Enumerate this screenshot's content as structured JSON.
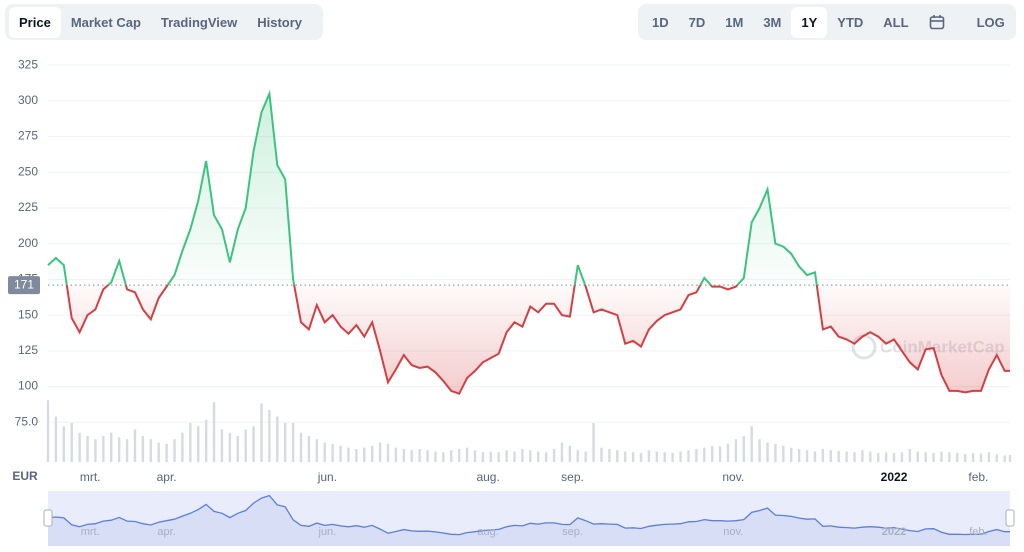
{
  "tabs": [
    "Price",
    "Market Cap",
    "TradingView",
    "History"
  ],
  "selected_tab": 0,
  "ranges": [
    "1D",
    "7D",
    "1M",
    "3M",
    "1Y",
    "YTD",
    "ALL"
  ],
  "selected_range": 4,
  "scale_toggle": "LOG",
  "chart_data": {
    "type": "line",
    "currency": "EUR",
    "watermark": "CoinMarketCap",
    "x": [
      0,
      3,
      6,
      9,
      12,
      15,
      18,
      21,
      24,
      27,
      30,
      33,
      36,
      39,
      42,
      45,
      48,
      51,
      54,
      57,
      60,
      63,
      66,
      69,
      72,
      75,
      78,
      81,
      84,
      87,
      90,
      93,
      96,
      99,
      102,
      105,
      108,
      111,
      114,
      117,
      120,
      123,
      126,
      129,
      132,
      135,
      138,
      141,
      144,
      147,
      150,
      153,
      156,
      159,
      162,
      165,
      168,
      171,
      174,
      177,
      180,
      183,
      186,
      189,
      192,
      195,
      198,
      201,
      204,
      207,
      210,
      213,
      216,
      219,
      222,
      225,
      228,
      231,
      234,
      237,
      240,
      243,
      246,
      249,
      252,
      255,
      258,
      261,
      264,
      267,
      270,
      273,
      276,
      279,
      282,
      285,
      288,
      291,
      294,
      297,
      300,
      303,
      306,
      309,
      312,
      315,
      318,
      321,
      324,
      327,
      330,
      333,
      336,
      339,
      342,
      345,
      348,
      351,
      354,
      357,
      360,
      363,
      365
    ],
    "values": [
      185,
      190,
      185,
      148,
      138,
      150,
      154,
      168,
      173,
      188,
      168,
      166,
      154,
      147,
      162,
      170,
      178,
      195,
      210,
      230,
      258,
      220,
      210,
      187,
      210,
      225,
      265,
      292,
      305,
      255,
      245,
      175,
      145,
      140,
      157,
      145,
      150,
      142,
      137,
      143,
      135,
      145,
      125,
      103,
      112,
      122,
      115,
      113,
      114,
      110,
      104,
      97,
      95,
      106,
      111,
      117,
      120,
      123,
      138,
      145,
      142,
      156,
      152,
      158,
      158,
      150,
      149,
      185,
      170,
      152,
      154,
      152,
      150,
      130,
      132,
      128,
      140,
      146,
      150,
      152,
      154,
      164,
      166,
      176,
      170,
      170,
      168,
      170,
      176,
      215,
      225,
      238,
      200,
      198,
      193,
      184,
      178,
      180,
      140,
      142,
      135,
      133,
      130,
      135,
      138,
      135,
      130,
      133,
      125,
      117,
      112,
      126,
      127,
      108,
      97,
      97,
      96,
      97,
      97,
      112,
      122,
      111,
      111
    ],
    "volume": [
      95,
      70,
      55,
      60,
      45,
      40,
      35,
      40,
      45,
      38,
      35,
      50,
      40,
      35,
      30,
      28,
      35,
      45,
      60,
      55,
      65,
      92,
      50,
      45,
      40,
      50,
      55,
      90,
      80,
      70,
      60,
      60,
      45,
      40,
      35,
      30,
      28,
      25,
      22,
      20,
      22,
      25,
      30,
      28,
      22,
      20,
      18,
      20,
      18,
      16,
      15,
      18,
      20,
      22,
      18,
      15,
      16,
      15,
      18,
      16,
      20,
      18,
      16,
      15,
      20,
      30,
      25,
      18,
      16,
      60,
      22,
      20,
      18,
      16,
      15,
      14,
      18,
      16,
      15,
      14,
      16,
      18,
      20,
      22,
      25,
      24,
      28,
      35,
      40,
      55,
      35,
      30,
      28,
      25,
      22,
      20,
      18,
      16,
      20,
      18,
      17,
      16,
      15,
      18,
      16,
      14,
      15,
      14,
      15,
      20,
      16,
      15,
      14,
      16,
      15,
      14,
      12,
      14,
      13,
      15,
      12,
      10,
      11
    ],
    "volume_lim": [
      0,
      100
    ],
    "baseline": 171,
    "up_color": "#3bc47e",
    "down_color": "#d63e41",
    "volume_color": "#d5dae3",
    "navigator_color": "#5b7ee0",
    "xlim": [
      0,
      365
    ],
    "xticks": [
      {
        "value": 16,
        "label": "mrt."
      },
      {
        "value": 45,
        "label": "apr."
      },
      {
        "value": 106,
        "label": "jun."
      },
      {
        "value": 167,
        "label": "aug."
      },
      {
        "value": 199,
        "label": "sep."
      },
      {
        "value": 260,
        "label": "nov."
      },
      {
        "value": 321,
        "label": "2022"
      },
      {
        "value": 353,
        "label": "feb."
      }
    ],
    "ylim": [
      50,
      330
    ],
    "yticks": [
      {
        "value": 75,
        "label": "75.0"
      },
      100,
      125,
      150,
      175,
      200,
      225,
      250,
      275,
      300,
      325
    ],
    "grid": true
  }
}
